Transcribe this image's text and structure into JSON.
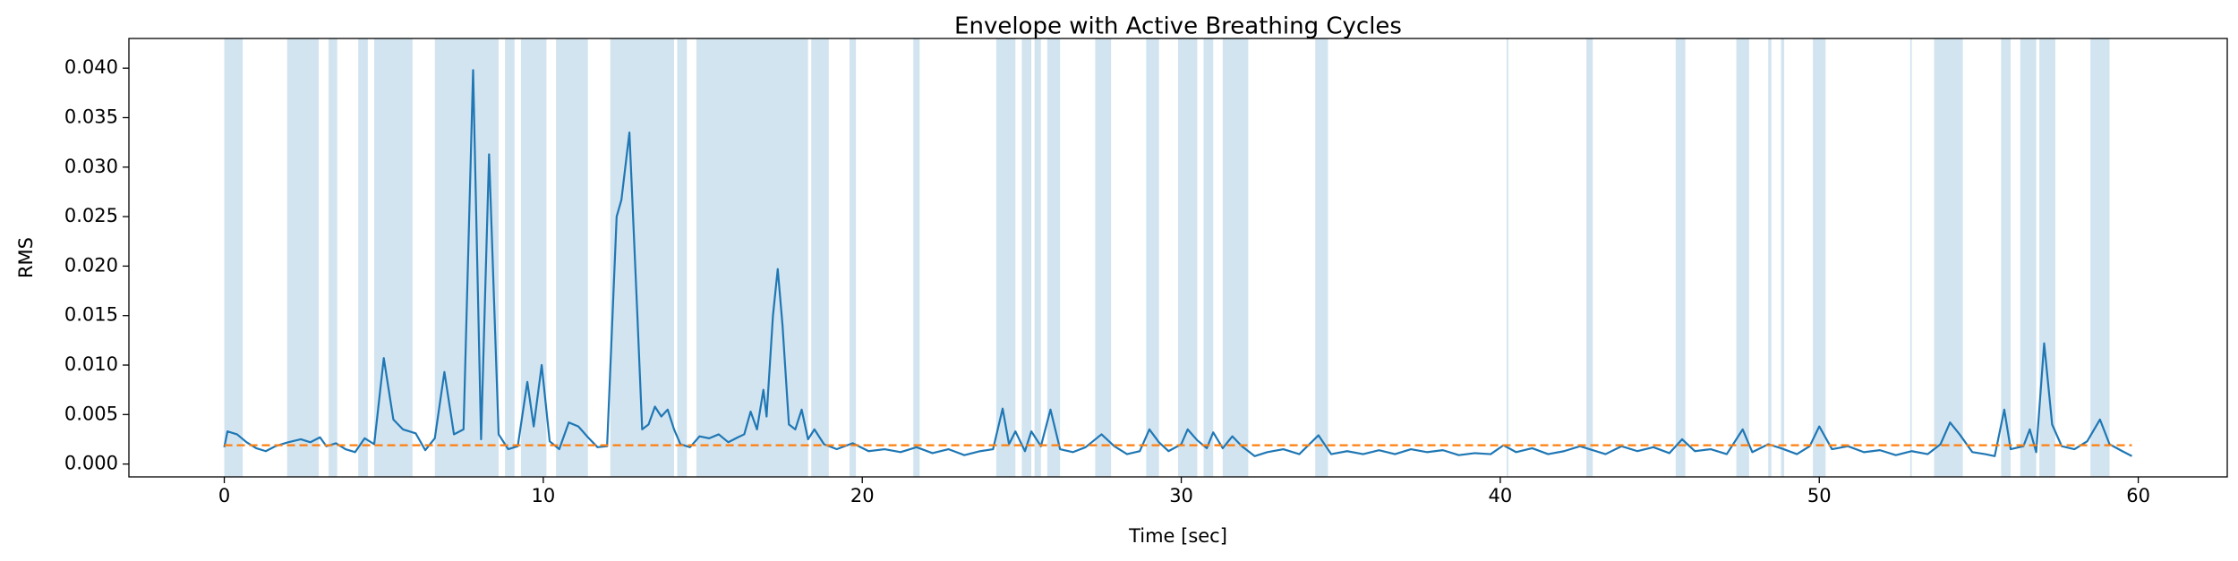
{
  "chart_data": {
    "type": "line",
    "title": "Envelope with Active Breathing Cycles",
    "xlabel": "Time [sec]",
    "ylabel": "RMS",
    "xlim": [
      -2.99,
      62.79
    ],
    "ylim": [
      -0.0013,
      0.043
    ],
    "xticks": [
      0,
      10,
      20,
      30,
      40,
      50,
      60
    ],
    "yticks": [
      {
        "value": 0,
        "label": "0.000"
      },
      {
        "value": 0.005,
        "label": "0.005"
      },
      {
        "value": 0.01,
        "label": "0.010"
      },
      {
        "value": 0.015,
        "label": "0.015"
      },
      {
        "value": 0.02,
        "label": "0.020"
      },
      {
        "value": 0.025,
        "label": "0.025"
      },
      {
        "value": 0.03,
        "label": "0.030"
      },
      {
        "value": 0.035,
        "label": "0.035"
      },
      {
        "value": 0.04,
        "label": "0.040"
      }
    ],
    "grid": false,
    "span_color": "#1f77b4",
    "spans": [
      [
        0,
        0.58
      ],
      [
        1.97,
        2.96
      ],
      [
        3.27,
        3.54
      ],
      [
        4.2,
        4.5
      ],
      [
        4.7,
        5.9
      ],
      [
        6.6,
        8.6
      ],
      [
        8.8,
        9.1
      ],
      [
        9.3,
        10.1
      ],
      [
        10.4,
        11.4
      ],
      [
        12.1,
        14.1
      ],
      [
        14.2,
        14.5
      ],
      [
        14.8,
        18.3
      ],
      [
        18.4,
        18.95
      ],
      [
        19.6,
        19.8
      ],
      [
        21.6,
        21.8
      ],
      [
        24.2,
        24.8
      ],
      [
        25.0,
        25.3
      ],
      [
        25.4,
        25.6
      ],
      [
        25.8,
        26.2
      ],
      [
        27.3,
        27.8
      ],
      [
        28.9,
        29.3
      ],
      [
        29.9,
        30.5
      ],
      [
        30.7,
        31.0
      ],
      [
        31.3,
        32.1
      ],
      [
        34.2,
        34.6
      ],
      [
        40.2,
        40.25
      ],
      [
        42.7,
        42.9
      ],
      [
        45.5,
        45.8
      ],
      [
        47.4,
        47.8
      ],
      [
        48.4,
        48.5
      ],
      [
        48.8,
        48.9
      ],
      [
        49.8,
        50.2
      ],
      [
        52.85,
        52.9
      ],
      [
        53.6,
        54.5
      ],
      [
        55.7,
        56.0
      ],
      [
        56.3,
        56.8
      ],
      [
        56.9,
        57.4
      ],
      [
        58.5,
        59.1
      ]
    ],
    "series": [
      {
        "color": "#1f77b4",
        "dash": false,
        "x": [
          0,
          0.1,
          0.4,
          0.7,
          1.0,
          1.3,
          1.6,
          2.0,
          2.4,
          2.7,
          3.0,
          3.2,
          3.5,
          3.8,
          4.1,
          4.4,
          4.7,
          5.0,
          5.3,
          5.6,
          6.0,
          6.3,
          6.6,
          6.9,
          7.2,
          7.5,
          7.8,
          8.05,
          8.3,
          8.6,
          8.9,
          9.2,
          9.5,
          9.7,
          9.95,
          10.2,
          10.5,
          10.8,
          11.1,
          11.4,
          11.7,
          12.0,
          12.3,
          12.45,
          12.7,
          12.95,
          13.1,
          13.3,
          13.5,
          13.7,
          13.9,
          14.1,
          14.3,
          14.6,
          14.9,
          15.2,
          15.5,
          15.8,
          16.1,
          16.3,
          16.5,
          16.7,
          16.9,
          17.0,
          17.2,
          17.35,
          17.5,
          17.7,
          17.9,
          18.1,
          18.3,
          18.5,
          18.8,
          19.2,
          19.7,
          20.2,
          20.7,
          21.2,
          21.7,
          22.2,
          22.7,
          23.2,
          23.7,
          24.1,
          24.4,
          24.6,
          24.8,
          25.1,
          25.3,
          25.6,
          25.9,
          26.2,
          26.6,
          27.0,
          27.5,
          27.9,
          28.3,
          28.7,
          29.0,
          29.3,
          29.6,
          30.0,
          30.2,
          30.5,
          30.8,
          31.0,
          31.3,
          31.6,
          31.9,
          32.3,
          32.7,
          33.2,
          33.7,
          34.3,
          34.7,
          35.2,
          35.7,
          36.2,
          36.7,
          37.2,
          37.7,
          38.2,
          38.7,
          39.2,
          39.7,
          40.1,
          40.5,
          41.0,
          41.5,
          42.0,
          42.5,
          42.8,
          43.3,
          43.8,
          44.3,
          44.8,
          45.3,
          45.7,
          46.1,
          46.6,
          47.1,
          47.6,
          47.9,
          48.4,
          48.8,
          49.3,
          49.7,
          50.0,
          50.4,
          50.9,
          51.4,
          51.9,
          52.4,
          52.9,
          53.4,
          53.8,
          54.1,
          54.4,
          54.8,
          55.2,
          55.5,
          55.8,
          56.0,
          56.4,
          56.6,
          56.8,
          57.05,
          57.3,
          57.6,
          58.0,
          58.4,
          58.8,
          59.1,
          59.5,
          59.8
        ],
        "values": [
          0.0017,
          0.0033,
          0.003,
          0.0022,
          0.0016,
          0.0013,
          0.0018,
          0.0022,
          0.0025,
          0.0022,
          0.0027,
          0.0018,
          0.0021,
          0.0015,
          0.0012,
          0.0026,
          0.002,
          0.0107,
          0.0045,
          0.0035,
          0.0031,
          0.0014,
          0.0026,
          0.0093,
          0.003,
          0.0035,
          0.0398,
          0.0025,
          0.0313,
          0.003,
          0.0015,
          0.0018,
          0.0083,
          0.0038,
          0.01,
          0.0023,
          0.0015,
          0.0042,
          0.0038,
          0.0027,
          0.0017,
          0.0018,
          0.025,
          0.0267,
          0.0335,
          0.015,
          0.0035,
          0.004,
          0.0058,
          0.0048,
          0.0055,
          0.0035,
          0.002,
          0.0017,
          0.0028,
          0.0026,
          0.003,
          0.0022,
          0.0027,
          0.003,
          0.0053,
          0.0035,
          0.0075,
          0.0048,
          0.015,
          0.0197,
          0.014,
          0.004,
          0.0035,
          0.0055,
          0.0025,
          0.0035,
          0.002,
          0.0015,
          0.0021,
          0.0013,
          0.0015,
          0.0012,
          0.0017,
          0.0011,
          0.0015,
          0.0009,
          0.0013,
          0.0015,
          0.0056,
          0.002,
          0.0033,
          0.0013,
          0.0033,
          0.0018,
          0.0055,
          0.0015,
          0.0012,
          0.0017,
          0.003,
          0.0018,
          0.001,
          0.0013,
          0.0035,
          0.0022,
          0.0013,
          0.002,
          0.0035,
          0.0024,
          0.0016,
          0.0032,
          0.0016,
          0.0028,
          0.0018,
          0.0008,
          0.0012,
          0.0015,
          0.001,
          0.0029,
          0.001,
          0.0013,
          0.001,
          0.0014,
          0.001,
          0.0015,
          0.0012,
          0.0014,
          0.0009,
          0.0011,
          0.001,
          0.0019,
          0.0012,
          0.0016,
          0.001,
          0.0013,
          0.0018,
          0.0015,
          0.001,
          0.0018,
          0.0013,
          0.0017,
          0.0011,
          0.0025,
          0.0013,
          0.0015,
          0.001,
          0.0035,
          0.0012,
          0.002,
          0.0016,
          0.001,
          0.0018,
          0.0038,
          0.0015,
          0.0018,
          0.0012,
          0.0014,
          0.0009,
          0.0013,
          0.001,
          0.002,
          0.0042,
          0.003,
          0.0012,
          0.001,
          0.0008,
          0.0055,
          0.0015,
          0.0018,
          0.0035,
          0.0012,
          0.0122,
          0.004,
          0.0018,
          0.0015,
          0.0023,
          0.0045,
          0.002,
          0.0013,
          0.0008
        ]
      },
      {
        "color": "#ff7f0e",
        "dash": true,
        "x": [
          0,
          59.8
        ],
        "values": [
          0.0019,
          0.0019
        ]
      }
    ]
  }
}
